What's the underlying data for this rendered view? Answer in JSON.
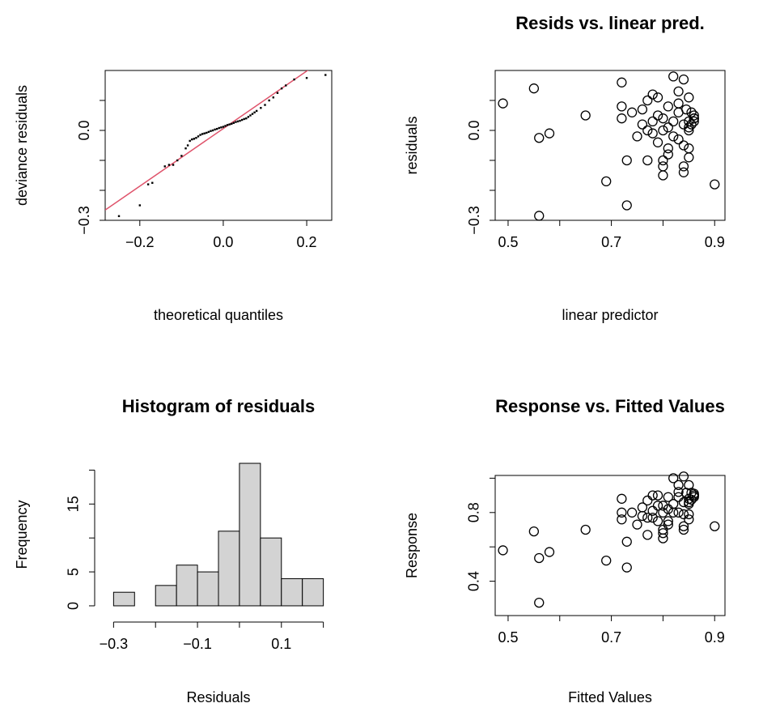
{
  "chart_data": [
    {
      "type": "qq",
      "x_label": "theoretical quantiles",
      "y_label": "deviance residuals",
      "color": "#000000",
      "x": [
        -0.25,
        -0.2,
        -0.18,
        -0.17,
        -0.14,
        -0.13,
        -0.12,
        -0.11,
        -0.1,
        -0.09,
        -0.085,
        -0.08,
        -0.075,
        -0.07,
        -0.065,
        -0.06,
        -0.055,
        -0.05,
        -0.045,
        -0.04,
        -0.035,
        -0.03,
        -0.025,
        -0.02,
        -0.015,
        -0.01,
        -0.005,
        0.0,
        0.005,
        0.01,
        0.015,
        0.02,
        0.025,
        0.03,
        0.035,
        0.04,
        0.045,
        0.05,
        0.055,
        0.06,
        0.065,
        0.07,
        0.075,
        0.08,
        0.09,
        0.1,
        0.11,
        0.12,
        0.13,
        0.14,
        0.15,
        0.17,
        0.2,
        0.245
      ],
      "values": [
        -0.286,
        -0.25,
        -0.18,
        -0.175,
        -0.12,
        -0.115,
        -0.115,
        -0.1,
        -0.085,
        -0.06,
        -0.05,
        -0.035,
        -0.03,
        -0.028,
        -0.025,
        -0.02,
        -0.015,
        -0.012,
        -0.01,
        -0.008,
        -0.005,
        -0.002,
        0.0,
        0.003,
        0.005,
        0.008,
        0.01,
        0.012,
        0.015,
        0.018,
        0.02,
        0.022,
        0.025,
        0.028,
        0.03,
        0.032,
        0.035,
        0.038,
        0.04,
        0.045,
        0.05,
        0.055,
        0.06,
        0.065,
        0.075,
        0.085,
        0.1,
        0.11,
        0.125,
        0.14,
        0.15,
        0.17,
        0.175,
        0.185
      ],
      "reference_line": {
        "intercept": 0.006,
        "slope": 0.96,
        "color": "#DF536B"
      },
      "xlim": [
        -0.283,
        0.26
      ],
      "xticks": [
        {
          "value": -0.2,
          "label": "−0.2"
        },
        {
          "value": 0,
          "label": "0.0"
        },
        0.2
      ],
      "ylim": [
        -0.3,
        0.2
      ],
      "yticks": [
        {
          "value": -0.3,
          "label": "−0.3"
        },
        {
          "value": 0,
          "label": "0.0"
        }
      ],
      "minor_yticks": [
        -0.2,
        -0.1,
        0.1
      ]
    },
    {
      "type": "scatter",
      "title": "Resids vs. linear pred.",
      "x_label": "linear predictor",
      "y_label": "residuals",
      "color": "#000000",
      "x": [
        0.49,
        0.56,
        0.56,
        0.58,
        0.55,
        0.65,
        0.69,
        0.72,
        0.73,
        0.73,
        0.72,
        0.72,
        0.74,
        0.75,
        0.76,
        0.76,
        0.77,
        0.77,
        0.77,
        0.78,
        0.78,
        0.79,
        0.79,
        0.79,
        0.8,
        0.8,
        0.8,
        0.8,
        0.81,
        0.81,
        0.81,
        0.81,
        0.82,
        0.82,
        0.82,
        0.83,
        0.83,
        0.83,
        0.84,
        0.84,
        0.84,
        0.84,
        0.85,
        0.85,
        0.85,
        0.845,
        0.85,
        0.855,
        0.86,
        0.85,
        0.86,
        0.855,
        0.86,
        0.9,
        0.78,
        0.83,
        0.84,
        0.86,
        0.85,
        0.8
      ],
      "values": [
        0.09,
        -0.025,
        -0.285,
        -0.01,
        0.14,
        0.05,
        -0.17,
        0.16,
        -0.25,
        -0.1,
        0.08,
        0.04,
        0.06,
        -0.02,
        0.02,
        0.07,
        0.1,
        0.0,
        -0.1,
        -0.01,
        0.03,
        0.05,
        0.11,
        -0.04,
        0.0,
        -0.1,
        -0.15,
        -0.12,
        0.01,
        0.08,
        -0.06,
        -0.08,
        0.18,
        0.03,
        -0.02,
        0.13,
        -0.03,
        0.06,
        0.17,
        0.02,
        -0.12,
        -0.14,
        0.11,
        0.03,
        0.01,
        0.07,
        0.0,
        0.02,
        0.03,
        -0.06,
        0.05,
        0.06,
        0.04,
        -0.18,
        0.12,
        0.09,
        -0.05,
        0.04,
        -0.09,
        0.04
      ],
      "xlim": [
        0.475,
        0.92
      ],
      "xticks": [
        0.5,
        0.7,
        0.9
      ],
      "minor_xticks": [
        0.6,
        0.8
      ],
      "ylim": [
        -0.3,
        0.2
      ],
      "yticks": [
        {
          "value": -0.3,
          "label": "−0.3"
        },
        {
          "value": 0,
          "label": "0.0"
        }
      ],
      "minor_yticks": [
        -0.2,
        -0.1,
        0.1
      ]
    },
    {
      "type": "histogram",
      "title": "Histogram of residuals",
      "x_label": "Residuals",
      "y_label": "Frequency",
      "color": "#D3D3D3",
      "bins": [
        -0.3,
        -0.25,
        -0.2,
        -0.15,
        -0.1,
        -0.05,
        0,
        0.05,
        0.1,
        0.15,
        0.2
      ],
      "values": [
        2,
        0,
        3,
        6,
        5,
        11,
        21,
        10,
        4,
        4
      ],
      "xlim": [
        -0.32,
        0.22
      ],
      "xticks": [
        {
          "value": -0.3,
          "label": "−0.3"
        },
        {
          "value": -0.1,
          "label": "−0.1"
        },
        0.1
      ],
      "minor_xticks": [
        -0.2,
        0,
        0.2
      ],
      "ylim": [
        -0.84,
        21.84
      ],
      "yticks": [
        0,
        5,
        15
      ],
      "minor_yticks": [
        10,
        20
      ]
    },
    {
      "type": "scatter",
      "title": "Response vs. Fitted Values",
      "x_label": "Fitted Values",
      "y_label": "Response",
      "color": "#000000",
      "x": [
        0.49,
        0.56,
        0.56,
        0.58,
        0.55,
        0.65,
        0.69,
        0.72,
        0.73,
        0.73,
        0.72,
        0.72,
        0.74,
        0.75,
        0.76,
        0.76,
        0.77,
        0.77,
        0.77,
        0.78,
        0.78,
        0.79,
        0.79,
        0.79,
        0.8,
        0.8,
        0.8,
        0.8,
        0.81,
        0.81,
        0.81,
        0.81,
        0.82,
        0.82,
        0.82,
        0.83,
        0.83,
        0.83,
        0.84,
        0.84,
        0.84,
        0.84,
        0.85,
        0.85,
        0.85,
        0.845,
        0.85,
        0.855,
        0.86,
        0.85,
        0.86,
        0.855,
        0.86,
        0.9,
        0.78,
        0.83,
        0.84,
        0.86,
        0.85,
        0.8
      ],
      "values": [
        0.58,
        0.535,
        0.275,
        0.57,
        0.69,
        0.7,
        0.52,
        0.88,
        0.48,
        0.63,
        0.8,
        0.76,
        0.8,
        0.73,
        0.78,
        0.83,
        0.87,
        0.77,
        0.67,
        0.77,
        0.81,
        0.84,
        0.9,
        0.75,
        0.8,
        0.7,
        0.65,
        0.68,
        0.82,
        0.89,
        0.75,
        0.73,
        1.0,
        0.85,
        0.8,
        0.96,
        0.8,
        0.89,
        1.01,
        0.86,
        0.72,
        0.7,
        0.96,
        0.88,
        0.86,
        0.915,
        0.85,
        0.875,
        0.89,
        0.79,
        0.91,
        0.915,
        0.9,
        0.72,
        0.9,
        0.92,
        0.79,
        0.9,
        0.76,
        0.84
      ],
      "xlim": [
        0.475,
        0.92
      ],
      "xticks": [
        0.5,
        0.7,
        0.9
      ],
      "minor_xticks": [
        0.6,
        0.8
      ],
      "ylim": [
        0.2,
        1.016
      ],
      "yticks": [
        0.4,
        0.8
      ],
      "minor_yticks": [
        0.6,
        1.0
      ]
    }
  ]
}
